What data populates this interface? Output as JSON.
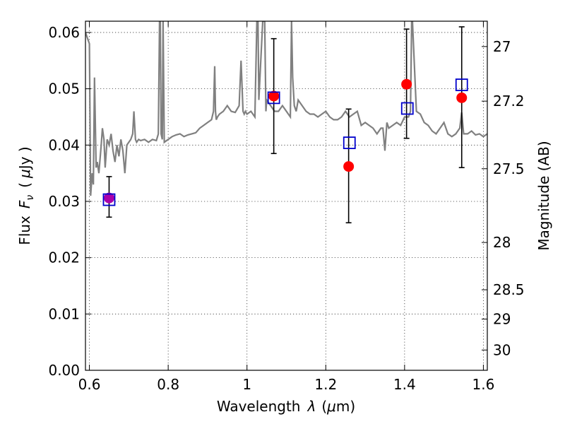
{
  "chart_data": {
    "type": "scatter",
    "xlabel": "Wavelength",
    "xlabel_symbol": "λ",
    "xlabel_unit_open": "(",
    "xlabel_unit_mu": "μ",
    "xlabel_unit_rest": "m)",
    "ylabel": "Flux",
    "ylabel_symbol": "F",
    "ylabel_symbol_sub": "ν",
    "ylabel_unit_open": "(",
    "ylabel_unit_mu": "μ",
    "ylabel_unit_rest": "Jy )",
    "y2label": "Magnitude (AB)",
    "xlim": [
      0.59,
      1.61
    ],
    "ylim": [
      0.0,
      0.062
    ],
    "grid": true,
    "x_ticks": [
      0.6,
      0.8,
      1.0,
      1.2,
      1.4,
      1.6
    ],
    "x_tick_labels": [
      "0.6",
      "0.8",
      "1",
      "1.2",
      "1.4",
      "1.6"
    ],
    "y_ticks": [
      0.0,
      0.01,
      0.02,
      0.03,
      0.04,
      0.05,
      0.06
    ],
    "y_tick_labels": [
      "0.00",
      "0.01",
      "0.02",
      "0.03",
      "0.04",
      "0.05",
      "0.06"
    ],
    "y2_ticks": [
      {
        "label": "27",
        "flux": 0.0575
      },
      {
        "label": "27.2",
        "flux": 0.0478
      },
      {
        "label": "27.5",
        "flux": 0.0358
      },
      {
        "label": "28",
        "flux": 0.0227
      },
      {
        "label": "28.5",
        "flux": 0.0143
      },
      {
        "label": "29",
        "flux": 0.0091
      },
      {
        "label": "30",
        "flux": 0.0036
      }
    ],
    "colors": {
      "spectrum": "#808080",
      "observed": "#ff0000",
      "model": "#0000cc",
      "first_point_overlap": "#aa00aa",
      "errorbar": "#000000"
    },
    "series": [
      {
        "type": "line",
        "style": "spectrum",
        "x": [
          0.59,
          0.6,
          0.603,
          0.607,
          0.61,
          0.613,
          0.617,
          0.62,
          0.624,
          0.63,
          0.633,
          0.637,
          0.64,
          0.645,
          0.65,
          0.655,
          0.66,
          0.665,
          0.67,
          0.675,
          0.68,
          0.685,
          0.69,
          0.695,
          0.7,
          0.705,
          0.71,
          0.713,
          0.717,
          0.72,
          0.725,
          0.73,
          0.74,
          0.75,
          0.76,
          0.77,
          0.775,
          0.778,
          0.78,
          0.782,
          0.785,
          0.787,
          0.79,
          0.8,
          0.81,
          0.82,
          0.83,
          0.84,
          0.85,
          0.86,
          0.87,
          0.88,
          0.89,
          0.9,
          0.91,
          0.915,
          0.918,
          0.92,
          0.922,
          0.925,
          0.93,
          0.94,
          0.95,
          0.96,
          0.97,
          0.98,
          0.985,
          0.99,
          0.993,
          0.996,
          1.0,
          1.01,
          1.02,
          1.025,
          1.028,
          1.03,
          1.04,
          1.045,
          1.048,
          1.05,
          1.06,
          1.07,
          1.08,
          1.09,
          1.1,
          1.11,
          1.113,
          1.116,
          1.12,
          1.125,
          1.13,
          1.14,
          1.15,
          1.16,
          1.17,
          1.18,
          1.19,
          1.2,
          1.21,
          1.22,
          1.23,
          1.24,
          1.25,
          1.26,
          1.27,
          1.28,
          1.29,
          1.3,
          1.31,
          1.32,
          1.33,
          1.34,
          1.345,
          1.35,
          1.355,
          1.36,
          1.37,
          1.38,
          1.39,
          1.4,
          1.41,
          1.415,
          1.418,
          1.42,
          1.43,
          1.44,
          1.45,
          1.46,
          1.47,
          1.48,
          1.49,
          1.5,
          1.51,
          1.52,
          1.53,
          1.54,
          1.545,
          1.55,
          1.56,
          1.57,
          1.58,
          1.59,
          1.6,
          1.61
        ],
        "y": [
          0.06,
          0.058,
          0.031,
          0.035,
          0.033,
          0.052,
          0.036,
          0.037,
          0.035,
          0.04,
          0.043,
          0.041,
          0.036,
          0.041,
          0.04,
          0.042,
          0.039,
          0.037,
          0.04,
          0.038,
          0.041,
          0.039,
          0.035,
          0.04,
          0.0405,
          0.041,
          0.042,
          0.046,
          0.041,
          0.0405,
          0.041,
          0.0408,
          0.041,
          0.0405,
          0.041,
          0.0408,
          0.042,
          0.062,
          0.062,
          0.042,
          0.041,
          0.062,
          0.0405,
          0.041,
          0.0415,
          0.0418,
          0.042,
          0.0415,
          0.0418,
          0.042,
          0.0422,
          0.043,
          0.0435,
          0.044,
          0.0445,
          0.046,
          0.054,
          0.046,
          0.0445,
          0.045,
          0.0455,
          0.046,
          0.047,
          0.046,
          0.0458,
          0.047,
          0.055,
          0.046,
          0.0455,
          0.046,
          0.0455,
          0.046,
          0.045,
          0.062,
          0.062,
          0.048,
          0.062,
          0.062,
          0.046,
          0.048,
          0.047,
          0.046,
          0.046,
          0.047,
          0.046,
          0.045,
          0.062,
          0.052,
          0.047,
          0.046,
          0.048,
          0.047,
          0.046,
          0.0455,
          0.0455,
          0.045,
          0.0455,
          0.046,
          0.045,
          0.0445,
          0.0445,
          0.045,
          0.046,
          0.045,
          0.0455,
          0.046,
          0.0435,
          0.044,
          0.0435,
          0.043,
          0.042,
          0.043,
          0.043,
          0.039,
          0.044,
          0.043,
          0.0435,
          0.044,
          0.0435,
          0.045,
          0.045,
          0.046,
          0.062,
          0.062,
          0.046,
          0.0455,
          0.044,
          0.0435,
          0.0425,
          0.042,
          0.043,
          0.044,
          0.042,
          0.0415,
          0.042,
          0.043,
          0.0458,
          0.042,
          0.042,
          0.0425,
          0.0418,
          0.042,
          0.0415,
          0.042
        ]
      },
      {
        "type": "scatter",
        "style": "observed",
        "marker": "circle",
        "x": [
          0.65,
          1.068,
          1.258,
          1.405,
          1.545
        ],
        "y": [
          0.0306,
          0.0487,
          0.0362,
          0.0508,
          0.0484
        ],
        "yerr_low": [
          0.0272,
          0.0385,
          0.0262,
          0.0412,
          0.036
        ],
        "yerr_high": [
          0.0344,
          0.0589,
          0.0464,
          0.0606,
          0.061
        ]
      },
      {
        "type": "scatter",
        "style": "model",
        "marker": "open-square",
        "x": [
          0.65,
          1.068,
          1.26,
          1.407,
          1.545
        ],
        "y": [
          0.0303,
          0.0484,
          0.0404,
          0.0465,
          0.0507
        ]
      }
    ]
  }
}
